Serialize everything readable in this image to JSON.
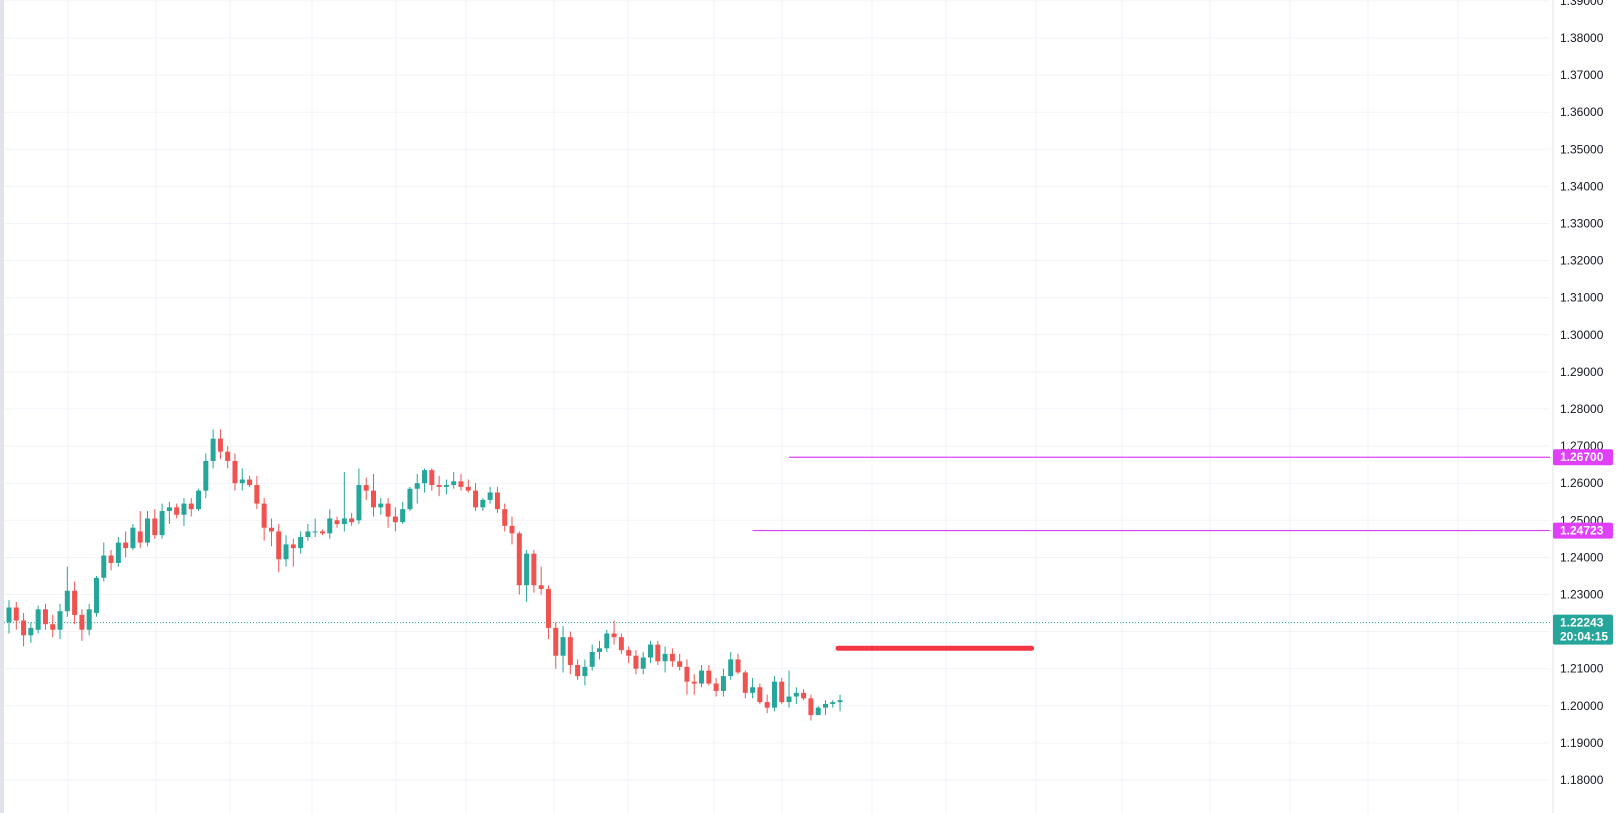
{
  "chart_data": {
    "type": "candlestick",
    "y_axis": {
      "ticks": [
        "1.18000",
        "1.19000",
        "1.20000",
        "1.21000",
        "1.22000",
        "1.23000",
        "1.24000",
        "1.25000",
        "1.26000",
        "1.27000",
        "1.28000",
        "1.29000",
        "1.30000",
        "1.31000",
        "1.32000",
        "1.33000",
        "1.34000",
        "1.35000",
        "1.36000",
        "1.37000",
        "1.38000",
        "1.39000"
      ],
      "ylim": [
        1.1785,
        1.3905
      ]
    },
    "colors": {
      "up": "#26a69a",
      "down": "#ef5350",
      "level": "#e040fb",
      "support": "#f23645",
      "last_price": "#26a69a",
      "grid": "#f0f3fa"
    },
    "levels": [
      {
        "value": 1.267,
        "label": "1.26700",
        "from_index": 107
      },
      {
        "value": 1.24723,
        "label": "1.24723",
        "from_index": 102
      }
    ],
    "support_line": {
      "value": 1.2155,
      "from_index": 114,
      "to_index": 140
    },
    "last_price": {
      "value": 1.22243,
      "label": "1.22243",
      "countdown": "20:04:15"
    },
    "candles": [
      [
        1.2225,
        1.2285,
        1.2195,
        1.2265
      ],
      [
        1.2265,
        1.228,
        1.2205,
        1.223
      ],
      [
        1.223,
        1.225,
        1.216,
        1.219
      ],
      [
        1.219,
        1.2225,
        1.217,
        1.221
      ],
      [
        1.2205,
        1.227,
        1.2195,
        1.226
      ],
      [
        1.226,
        1.2275,
        1.2205,
        1.222
      ],
      [
        1.222,
        1.2245,
        1.2185,
        1.2205
      ],
      [
        1.2205,
        1.2275,
        1.218,
        1.2255
      ],
      [
        1.2255,
        1.2375,
        1.224,
        1.231
      ],
      [
        1.231,
        1.2335,
        1.222,
        1.2245
      ],
      [
        1.2245,
        1.226,
        1.2175,
        1.2205
      ],
      [
        1.2205,
        1.2275,
        1.219,
        1.226
      ],
      [
        1.225,
        1.235,
        1.224,
        1.2345
      ],
      [
        1.2345,
        1.244,
        1.2335,
        1.2405
      ],
      [
        1.2405,
        1.242,
        1.2365,
        1.2385
      ],
      [
        1.2385,
        1.2455,
        1.2375,
        1.244
      ],
      [
        1.244,
        1.247,
        1.24,
        1.2425
      ],
      [
        1.2425,
        1.249,
        1.242,
        1.248
      ],
      [
        1.247,
        1.2525,
        1.2425,
        1.244
      ],
      [
        1.244,
        1.2525,
        1.243,
        1.2505
      ],
      [
        1.2505,
        1.253,
        1.245,
        1.246
      ],
      [
        1.246,
        1.2545,
        1.245,
        1.2525
      ],
      [
        1.2525,
        1.255,
        1.249,
        1.2535
      ],
      [
        1.2535,
        1.2545,
        1.2505,
        1.2515
      ],
      [
        1.2515,
        1.256,
        1.2485,
        1.2545
      ],
      [
        1.2545,
        1.256,
        1.251,
        1.253
      ],
      [
        1.253,
        1.2585,
        1.2525,
        1.258
      ],
      [
        1.258,
        1.268,
        1.256,
        1.266
      ],
      [
        1.266,
        1.2745,
        1.264,
        1.272
      ],
      [
        1.272,
        1.2745,
        1.2665,
        1.2685
      ],
      [
        1.2685,
        1.27,
        1.264,
        1.266
      ],
      [
        1.266,
        1.268,
        1.258,
        1.26
      ],
      [
        1.26,
        1.264,
        1.258,
        1.261
      ],
      [
        1.261,
        1.262,
        1.259,
        1.2595
      ],
      [
        1.2595,
        1.262,
        1.253,
        1.2545
      ],
      [
        1.2545,
        1.256,
        1.2445,
        1.248
      ],
      [
        1.248,
        1.2505,
        1.243,
        1.247
      ],
      [
        1.247,
        1.249,
        1.236,
        1.2395
      ],
      [
        1.2395,
        1.246,
        1.2375,
        1.2435
      ],
      [
        1.2435,
        1.245,
        1.2375,
        1.2425
      ],
      [
        1.2425,
        1.247,
        1.241,
        1.2455
      ],
      [
        1.2455,
        1.249,
        1.2445,
        1.247
      ],
      [
        1.247,
        1.2505,
        1.2455,
        1.247
      ],
      [
        1.247,
        1.2475,
        1.246,
        1.2465
      ],
      [
        1.2465,
        1.253,
        1.245,
        1.2505
      ],
      [
        1.25,
        1.251,
        1.248,
        1.249
      ],
      [
        1.249,
        1.263,
        1.247,
        1.2505
      ],
      [
        1.2505,
        1.252,
        1.2485,
        1.2495
      ],
      [
        1.25,
        1.264,
        1.249,
        1.2595
      ],
      [
        1.2595,
        1.2615,
        1.2555,
        1.258
      ],
      [
        1.258,
        1.2625,
        1.251,
        1.2535
      ],
      [
        1.2535,
        1.256,
        1.2515,
        1.2545
      ],
      [
        1.2545,
        1.256,
        1.248,
        1.251
      ],
      [
        1.251,
        1.2535,
        1.247,
        1.2495
      ],
      [
        1.2495,
        1.255,
        1.249,
        1.253
      ],
      [
        1.253,
        1.259,
        1.2525,
        1.2585
      ],
      [
        1.2585,
        1.2625,
        1.2545,
        1.26
      ],
      [
        1.26,
        1.264,
        1.2575,
        1.2635
      ],
      [
        1.2635,
        1.264,
        1.258,
        1.2595
      ],
      [
        1.2595,
        1.262,
        1.2565,
        1.259
      ],
      [
        1.259,
        1.261,
        1.257,
        1.2595
      ],
      [
        1.2595,
        1.263,
        1.2585,
        1.2605
      ],
      [
        1.2605,
        1.2625,
        1.258,
        1.259
      ],
      [
        1.259,
        1.261,
        1.2575,
        1.258
      ],
      [
        1.258,
        1.26,
        1.2525,
        1.2535
      ],
      [
        1.2535,
        1.256,
        1.2525,
        1.2555
      ],
      [
        1.2555,
        1.259,
        1.2545,
        1.2575
      ],
      [
        1.2575,
        1.259,
        1.252,
        1.253
      ],
      [
        1.253,
        1.2545,
        1.247,
        1.2485
      ],
      [
        1.2485,
        1.251,
        1.2435,
        1.2465
      ],
      [
        1.2465,
        1.247,
        1.23,
        1.2325
      ],
      [
        1.2325,
        1.242,
        1.228,
        1.241
      ],
      [
        1.241,
        1.242,
        1.2305,
        1.2325
      ],
      [
        1.2325,
        1.2375,
        1.23,
        1.2315
      ],
      [
        1.2315,
        1.2325,
        1.218,
        1.221
      ],
      [
        1.221,
        1.2225,
        1.21,
        1.2135
      ],
      [
        1.2135,
        1.2215,
        1.209,
        1.2185
      ],
      [
        1.2185,
        1.22,
        1.2085,
        1.211
      ],
      [
        1.211,
        1.2125,
        1.207,
        1.208
      ],
      [
        1.208,
        1.2125,
        1.2055,
        1.2105
      ],
      [
        1.2105,
        1.2165,
        1.2095,
        1.2145
      ],
      [
        1.2145,
        1.2175,
        1.2125,
        1.2155
      ],
      [
        1.2155,
        1.2205,
        1.2145,
        1.2195
      ],
      [
        1.2195,
        1.223,
        1.2165,
        1.2185
      ],
      [
        1.2185,
        1.2195,
        1.214,
        1.215
      ],
      [
        1.215,
        1.216,
        1.2115,
        1.2135
      ],
      [
        1.2135,
        1.215,
        1.2085,
        1.21
      ],
      [
        1.21,
        1.2145,
        1.2085,
        1.213
      ],
      [
        1.213,
        1.2175,
        1.2115,
        1.2165
      ],
      [
        1.2165,
        1.2175,
        1.211,
        1.212
      ],
      [
        1.212,
        1.216,
        1.209,
        1.214
      ],
      [
        1.214,
        1.2155,
        1.2105,
        1.212
      ],
      [
        1.212,
        1.214,
        1.2095,
        1.2105
      ],
      [
        1.2105,
        1.2125,
        1.203,
        1.2065
      ],
      [
        1.2065,
        1.2085,
        1.203,
        1.206
      ],
      [
        1.206,
        1.211,
        1.205,
        1.2095
      ],
      [
        1.2095,
        1.211,
        1.2055,
        1.206
      ],
      [
        1.206,
        1.2075,
        1.2025,
        1.204
      ],
      [
        1.204,
        1.21,
        1.2025,
        1.208
      ],
      [
        1.208,
        1.2145,
        1.207,
        1.2125
      ],
      [
        1.2125,
        1.214,
        1.2085,
        1.209
      ],
      [
        1.209,
        1.2095,
        1.202,
        1.2035
      ],
      [
        1.2035,
        1.2075,
        1.202,
        1.205
      ],
      [
        1.205,
        1.206,
        1.2005,
        1.201
      ],
      [
        1.201,
        1.203,
        1.198,
        1.1995
      ],
      [
        1.1995,
        1.208,
        1.1985,
        1.2065
      ],
      [
        1.2065,
        1.2075,
        1.2005,
        1.201
      ],
      [
        1.201,
        1.2095,
        1.1995,
        1.2025
      ],
      [
        1.2025,
        1.205,
        1.2005,
        1.2035
      ],
      [
        1.2035,
        1.2045,
        1.2015,
        1.202
      ],
      [
        1.202,
        1.203,
        1.196,
        1.1975
      ],
      [
        1.1975,
        1.2,
        1.1975,
        1.1995
      ],
      [
        1.1995,
        1.2015,
        1.1975,
        1.2005
      ],
      [
        1.2005,
        1.2015,
        1.1995,
        1.201
      ],
      [
        1.201,
        1.203,
        1.1985,
        1.2015
      ]
    ]
  }
}
